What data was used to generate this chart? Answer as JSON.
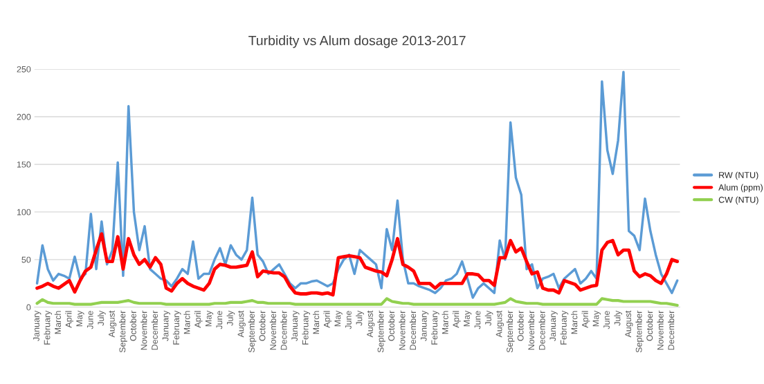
{
  "chart_data": {
    "type": "line",
    "title": "Turbidity vs Alum dosage 2013-2017",
    "categories": [
      "January",
      null,
      "February",
      null,
      "March",
      null,
      "April",
      null,
      "May",
      null,
      "June",
      null,
      "July",
      null,
      "August",
      null,
      "September",
      null,
      "October",
      null,
      "November",
      null,
      "December",
      null,
      "January",
      null,
      "February",
      null,
      "March",
      null,
      "April",
      null,
      "May",
      null,
      "June",
      null,
      "July",
      null,
      "August",
      null,
      "September",
      null,
      "October",
      null,
      "November",
      null,
      "December",
      null,
      "January",
      null,
      "February",
      null,
      "March",
      null,
      "April",
      null,
      "May",
      null,
      "June",
      null,
      "July",
      null,
      "August",
      null,
      "September",
      null,
      "October",
      null,
      "November",
      null,
      "December",
      null,
      "January",
      null,
      "February",
      null,
      "March",
      null,
      "April",
      null,
      "May",
      null,
      "June",
      null,
      "July",
      null,
      "August",
      null,
      "September",
      null,
      "October",
      null,
      "November",
      null,
      "December",
      null,
      "January",
      null,
      "February",
      null,
      "March",
      null,
      "April",
      null,
      "May",
      null,
      "June",
      null,
      "July",
      null,
      "August",
      null,
      "September",
      null,
      "October",
      null,
      "November",
      null,
      "December",
      null
    ],
    "ylim": [
      0,
      250
    ],
    "yticks": [
      0,
      50,
      100,
      150,
      200,
      250
    ],
    "grid": "y",
    "legend": "right",
    "marker": "none",
    "line_style": "solid",
    "series": [
      {
        "name": "RW (NTU)",
        "color": "#5b9bd5",
        "values": [
          25,
          65,
          40,
          28,
          35,
          33,
          30,
          53,
          30,
          35,
          98,
          40,
          90,
          45,
          60,
          152,
          33,
          211,
          100,
          60,
          85,
          40,
          35,
          30,
          28,
          22,
          30,
          40,
          35,
          69,
          30,
          35,
          35,
          50,
          62,
          45,
          65,
          55,
          50,
          60,
          115,
          55,
          48,
          35,
          40,
          45,
          35,
          25,
          20,
          25,
          25,
          27,
          28,
          25,
          22,
          25,
          40,
          50,
          55,
          35,
          60,
          55,
          50,
          45,
          20,
          82,
          60,
          112,
          50,
          25,
          25,
          22,
          20,
          18,
          15,
          20,
          28,
          30,
          35,
          48,
          30,
          10,
          20,
          25,
          20,
          15,
          70,
          50,
          194,
          136,
          118,
          40,
          45,
          20,
          30,
          32,
          35,
          20,
          30,
          35,
          40,
          25,
          30,
          38,
          30,
          237,
          165,
          140,
          175,
          247,
          80,
          75,
          60,
          114,
          80,
          55,
          35,
          25,
          15,
          28
        ]
      },
      {
        "name": "Alum (ppm)",
        "color": "#ff0000",
        "values": [
          20,
          22,
          25,
          22,
          20,
          24,
          28,
          16,
          28,
          38,
          42,
          60,
          77,
          48,
          48,
          74,
          40,
          72,
          55,
          45,
          50,
          42,
          52,
          45,
          20,
          17,
          25,
          30,
          25,
          22,
          20,
          18,
          25,
          40,
          45,
          44,
          42,
          42,
          43,
          44,
          58,
          32,
          38,
          37,
          36,
          36,
          32,
          22,
          15,
          14,
          14,
          15,
          15,
          14,
          15,
          13,
          52,
          53,
          54,
          53,
          52,
          42,
          40,
          38,
          37,
          33,
          50,
          72,
          45,
          42,
          38,
          25,
          25,
          25,
          20,
          25,
          25,
          25,
          25,
          25,
          35,
          35,
          34,
          28,
          28,
          23,
          52,
          52,
          70,
          58,
          62,
          48,
          35,
          37,
          20,
          18,
          18,
          15,
          28,
          26,
          24,
          18,
          20,
          22,
          23,
          60,
          68,
          70,
          55,
          60,
          60,
          38,
          32,
          35,
          33,
          28,
          25,
          35,
          50,
          48
        ]
      },
      {
        "name": "CW (NTU)",
        "color": "#92d050",
        "values": [
          4,
          8,
          5,
          4,
          4,
          4,
          4,
          3,
          3,
          3,
          3,
          4,
          5,
          5,
          5,
          5,
          6,
          7,
          5,
          4,
          4,
          4,
          4,
          4,
          3,
          3,
          3,
          3,
          3,
          3,
          3,
          3,
          3,
          4,
          4,
          4,
          5,
          5,
          5,
          6,
          7,
          5,
          5,
          4,
          4,
          4,
          4,
          4,
          3,
          3,
          3,
          3,
          3,
          3,
          3,
          3,
          3,
          3,
          3,
          3,
          3,
          3,
          3,
          3,
          3,
          9,
          6,
          5,
          4,
          4,
          3,
          3,
          3,
          3,
          3,
          3,
          3,
          3,
          3,
          3,
          3,
          3,
          3,
          3,
          3,
          3,
          4,
          5,
          9,
          6,
          5,
          4,
          4,
          4,
          3,
          3,
          3,
          3,
          3,
          3,
          3,
          3,
          3,
          3,
          3,
          9,
          8,
          7,
          7,
          6,
          6,
          6,
          6,
          6,
          6,
          5,
          4,
          4,
          3,
          2
        ]
      }
    ]
  }
}
